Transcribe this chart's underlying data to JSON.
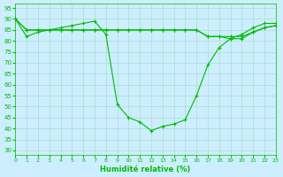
{
  "title": "",
  "xlabel": "Humidité relative (%)",
  "ylabel": "",
  "xlim": [
    0,
    23
  ],
  "ylim": [
    28,
    97
  ],
  "yticks": [
    30,
    35,
    40,
    45,
    50,
    55,
    60,
    65,
    70,
    75,
    80,
    85,
    90,
    95
  ],
  "xticks": [
    0,
    1,
    2,
    3,
    4,
    5,
    6,
    7,
    8,
    9,
    10,
    11,
    12,
    13,
    14,
    15,
    16,
    17,
    18,
    19,
    20,
    21,
    22,
    23
  ],
  "bg_color": "#cceeff",
  "grid_color": "#aaddcc",
  "line_color": "#00bb00",
  "marker": "+",
  "line1_x": [
    0,
    1,
    2,
    3,
    4,
    5,
    6,
    7,
    8,
    9,
    10,
    11,
    12,
    13,
    14,
    15,
    16,
    17,
    18,
    19,
    20,
    21,
    22,
    23
  ],
  "line1_y": [
    90,
    82,
    84,
    85,
    86,
    87,
    88,
    89,
    83,
    51,
    45,
    43,
    39,
    41,
    42,
    44,
    55,
    69,
    77,
    81,
    83,
    86,
    88,
    88
  ],
  "line2_x": [
    0,
    1,
    2,
    3,
    4,
    5,
    6,
    7,
    8,
    9,
    10,
    11,
    12,
    13,
    14,
    15,
    16,
    17,
    18,
    19,
    20,
    21,
    22,
    23
  ],
  "line2_y": [
    90,
    85,
    85,
    85,
    85,
    85,
    85,
    85,
    85,
    85,
    85,
    85,
    85,
    85,
    85,
    85,
    85,
    82,
    82,
    81,
    81,
    84,
    86,
    87
  ],
  "line3_x": [
    0,
    1,
    2,
    3,
    4,
    5,
    6,
    7,
    8,
    9,
    10,
    11,
    12,
    13,
    14,
    15,
    16,
    17,
    18,
    19,
    20,
    21,
    22,
    23
  ],
  "line3_y": [
    90,
    85,
    85,
    85,
    85,
    85,
    85,
    85,
    85,
    85,
    85,
    85,
    85,
    85,
    85,
    85,
    85,
    82,
    82,
    82,
    82,
    84,
    86,
    87
  ]
}
